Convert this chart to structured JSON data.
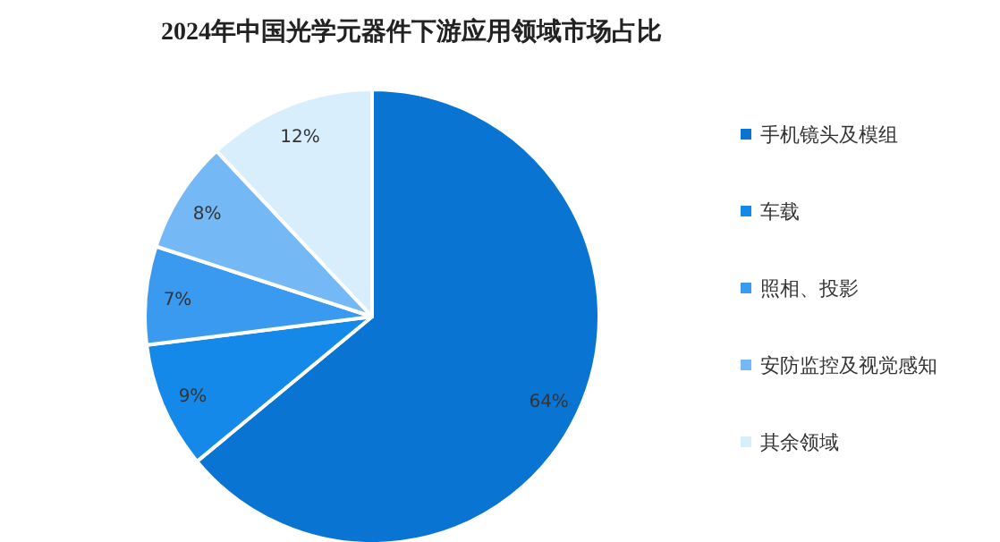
{
  "chart_data": {
    "type": "pie",
    "title": "2024年中国光学元器件下游应用领域市场占比",
    "categories": [
      "手机镜头及模组",
      "车载",
      "照相、投影",
      "安防监控及视觉感知",
      "其余领域"
    ],
    "values": [
      64,
      9,
      7,
      8,
      12
    ],
    "colors": [
      "#0a74d2",
      "#1489ea",
      "#3a9af0",
      "#74b9f5",
      "#d8eefc"
    ],
    "value_labels": [
      "64%",
      "9%",
      "7%",
      "8%",
      "12%"
    ],
    "legend": "right"
  }
}
